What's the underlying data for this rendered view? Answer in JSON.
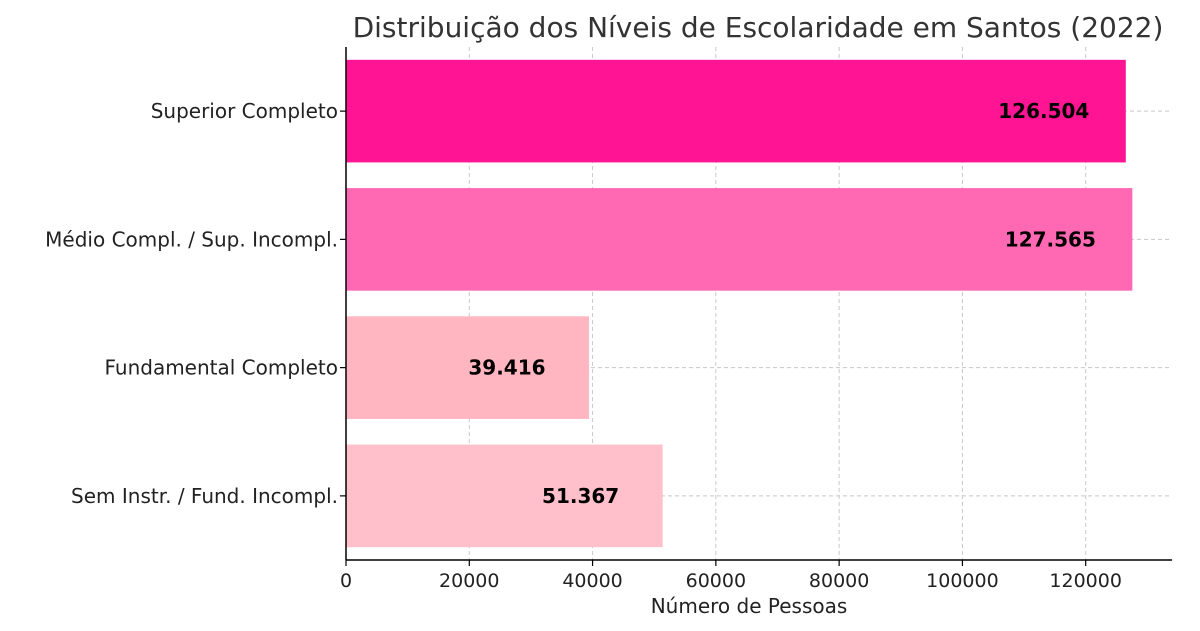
{
  "chart_data": {
    "type": "bar",
    "orientation": "horizontal",
    "title": "Distribuição dos Níveis de Escolaridade em Santos (2022)",
    "xlabel": "Número de Pessoas",
    "ylabel": "",
    "categories": [
      "Superior Completo",
      "Médio Compl. / Sup. Incompl.",
      "Fundamental Completo",
      "Sem Instr. / Fund. Incompl."
    ],
    "values": [
      126504,
      127565,
      39416,
      51367
    ],
    "value_labels": [
      "126.504",
      "127.565",
      "39.416",
      "51.367"
    ],
    "colors": [
      "#ff1493",
      "#ff69b4",
      "#ffb6c1",
      "#ffc0cb"
    ],
    "xlim": [
      0,
      134000
    ],
    "xticks": [
      0,
      20000,
      40000,
      60000,
      80000,
      100000,
      120000
    ],
    "grid": true
  }
}
